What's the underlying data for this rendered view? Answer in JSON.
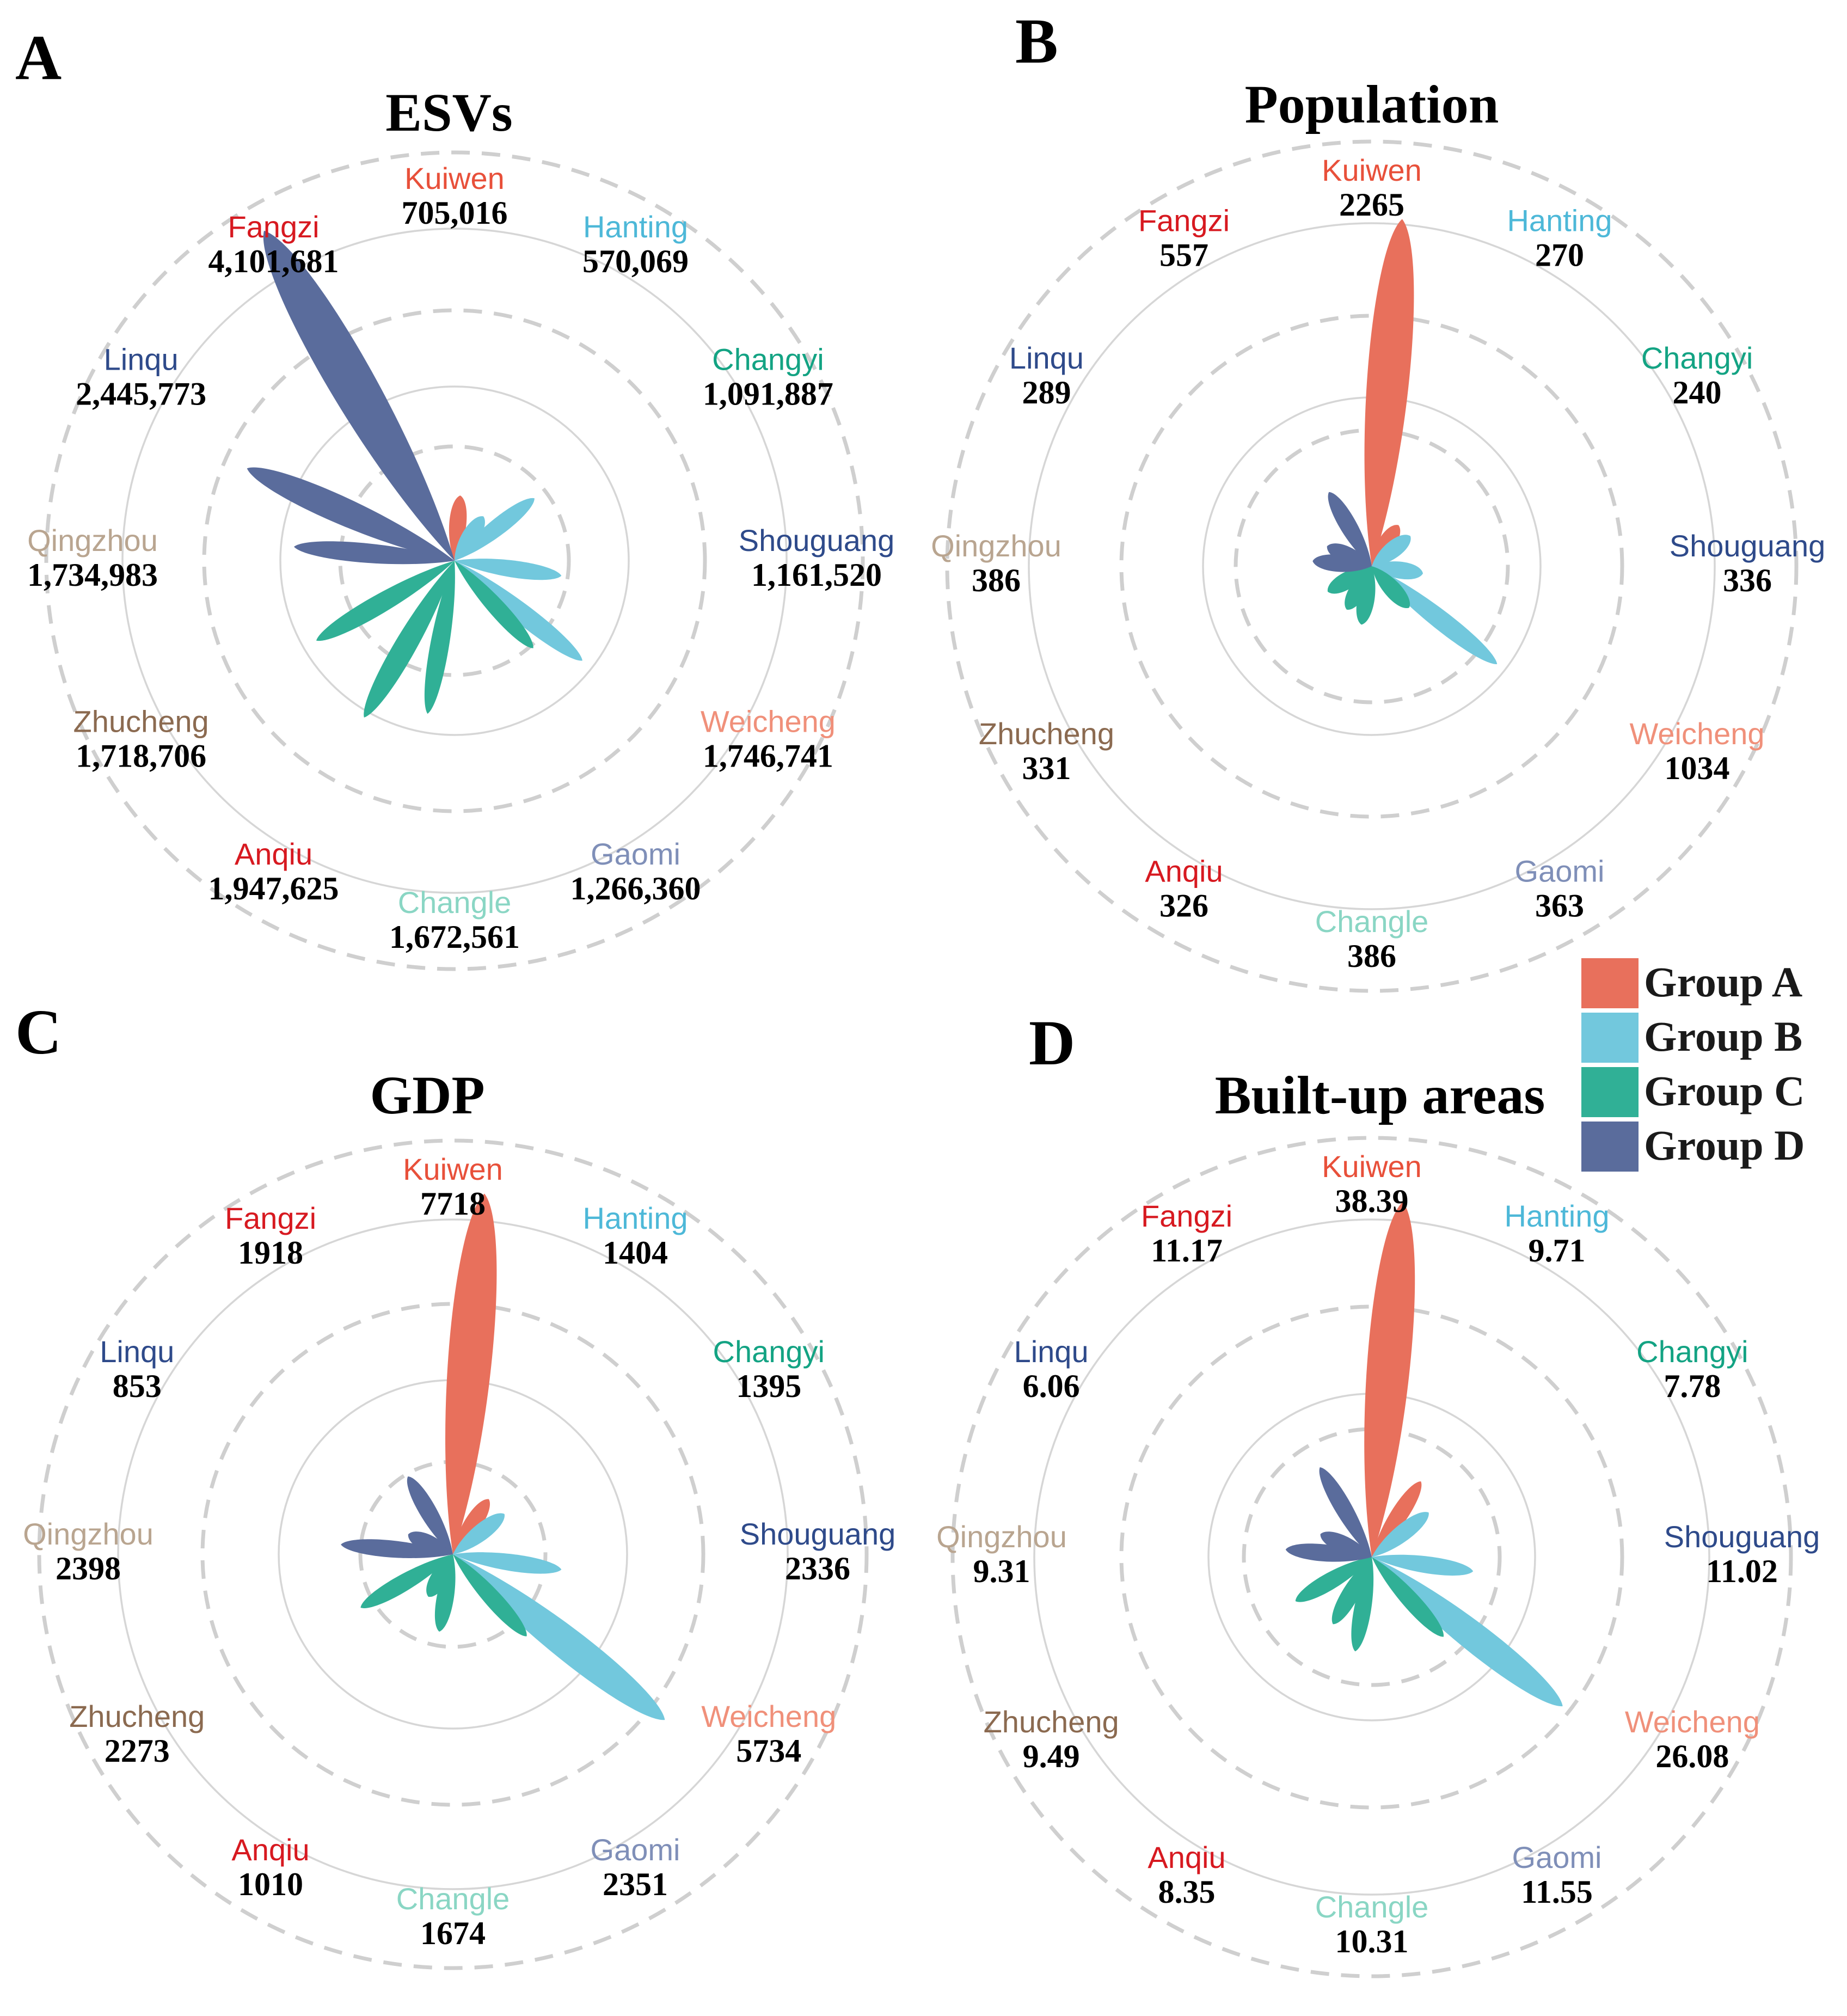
{
  "districts": [
    "Kuiwen",
    "Hanting",
    "Changyi",
    "Shouguang",
    "Weicheng",
    "Gaomi",
    "Changle",
    "Anqiu",
    "Zhucheng",
    "Qingzhou",
    "Linqu",
    "Fangzi"
  ],
  "district_colors": {
    "Kuiwen": "#e8503a",
    "Hanting": "#4db8d8",
    "Changyi": "#13a383",
    "Shouguang": "#2e4a8a",
    "Weicheng": "#f0907a",
    "Gaomi": "#7f8fb8",
    "Changle": "#8ad6c4",
    "Anqiu": "#d71920",
    "Zhucheng": "#8b6a50",
    "Qingzhou": "#b9a590",
    "Linqu": "#2e4a8a",
    "Fangzi": "#d71920"
  },
  "group_colors": {
    "Group A": "#e8705c",
    "Group B": "#72c8dd",
    "Group C": "#30b096",
    "Group D": "#5a6c9c"
  },
  "legend": [
    "Group A",
    "Group B",
    "Group C",
    "Group D"
  ],
  "chart_data": [
    {
      "type": "polar-petal",
      "panel": "A",
      "title": "ESVs",
      "categories": [
        "Kuiwen",
        "Hanting",
        "Changyi",
        "Shouguang",
        "Weicheng",
        "Gaomi",
        "Changle",
        "Anqiu",
        "Zhucheng",
        "Qingzhou",
        "Linqu",
        "Fangzi"
      ],
      "values": [
        705016,
        570069,
        1091887,
        1161520,
        1746741,
        1266360,
        1672561,
        1947625,
        1718706,
        1734983,
        2445773,
        4101681
      ],
      "labels": [
        "705,016",
        "570,069",
        "1,091,887",
        "1,161,520",
        "1,746,741",
        "1,266,360",
        "1,672,561",
        "1,947,625",
        "1,718,706",
        "1,734,983",
        "2,445,773",
        "4,101,681"
      ],
      "groups": [
        "Group A",
        "Group B",
        "Group B",
        "Group B",
        "Group B",
        "Group C",
        "Group C",
        "Group C",
        "Group C",
        "Group D",
        "Group D",
        "Group D"
      ]
    },
    {
      "type": "polar-petal",
      "panel": "B",
      "title": "Population",
      "categories": [
        "Kuiwen",
        "Hanting",
        "Changyi",
        "Shouguang",
        "Weicheng",
        "Gaomi",
        "Changle",
        "Anqiu",
        "Zhucheng",
        "Qingzhou",
        "Linqu",
        "Fangzi"
      ],
      "values": [
        2265,
        270,
        240,
        336,
        1034,
        363,
        386,
        326,
        331,
        386,
        289,
        557
      ],
      "labels": [
        "2265",
        "270",
        "240",
        "336",
        "1034",
        "363",
        "386",
        "326",
        "331",
        "386",
        "289",
        "557"
      ],
      "groups": [
        "Group A",
        "Group A",
        "Group B",
        "Group B",
        "Group B",
        "Group C",
        "Group C",
        "Group C",
        "Group C",
        "Group D",
        "Group D",
        "Group D"
      ]
    },
    {
      "type": "polar-petal",
      "panel": "C",
      "title": "GDP",
      "categories": [
        "Kuiwen",
        "Hanting",
        "Changyi",
        "Shouguang",
        "Weicheng",
        "Gaomi",
        "Changle",
        "Anqiu",
        "Zhucheng",
        "Qingzhou",
        "Linqu",
        "Fangzi"
      ],
      "values": [
        7718,
        1404,
        1395,
        2336,
        5734,
        2351,
        1674,
        1010,
        2273,
        2398,
        853,
        1918
      ],
      "labels": [
        "7718",
        "1404",
        "1395",
        "2336",
        "5734",
        "2351",
        "1674",
        "1010",
        "2273",
        "2398",
        "853",
        "1918"
      ],
      "groups": [
        "Group A",
        "Group A",
        "Group B",
        "Group B",
        "Group B",
        "Group C",
        "Group C",
        "Group C",
        "Group C",
        "Group D",
        "Group D",
        "Group D"
      ]
    },
    {
      "type": "polar-petal",
      "panel": "D",
      "title": "Built-up areas",
      "categories": [
        "Kuiwen",
        "Hanting",
        "Changyi",
        "Shouguang",
        "Weicheng",
        "Gaomi",
        "Changle",
        "Anqiu",
        "Zhucheng",
        "Qingzhou",
        "Linqu",
        "Fangzi"
      ],
      "values": [
        38.39,
        9.71,
        7.78,
        11.02,
        26.08,
        11.55,
        10.31,
        8.35,
        9.49,
        9.31,
        6.06,
        11.17
      ],
      "labels": [
        "38.39",
        "9.71",
        "7.78",
        "11.02",
        "26.08",
        "11.55",
        "10.31",
        "8.35",
        "9.49",
        "9.31",
        "6.06",
        "11.17"
      ],
      "groups": [
        "Group A",
        "Group A",
        "Group B",
        "Group B",
        "Group B",
        "Group C",
        "Group C",
        "Group C",
        "Group C",
        "Group D",
        "Group D",
        "Group D"
      ]
    }
  ]
}
